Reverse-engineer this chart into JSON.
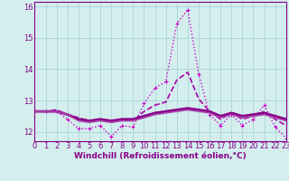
{
  "x": [
    0,
    1,
    2,
    3,
    4,
    5,
    6,
    7,
    8,
    9,
    10,
    11,
    12,
    13,
    14,
    15,
    16,
    17,
    18,
    19,
    20,
    21,
    22,
    23
  ],
  "lines": [
    {
      "name": "dotted_marker",
      "y": [
        12.65,
        12.65,
        12.65,
        12.4,
        12.1,
        12.1,
        12.2,
        11.85,
        12.2,
        12.15,
        12.9,
        13.4,
        13.6,
        15.45,
        15.9,
        13.85,
        12.55,
        12.2,
        12.55,
        12.2,
        12.4,
        12.85,
        12.15,
        11.8
      ],
      "color": "#cc00cc",
      "lw": 1.0,
      "marker": "+",
      "markersize": 3,
      "linestyle": "dotted"
    },
    {
      "name": "dashed_rising",
      "y": [
        12.65,
        12.65,
        12.7,
        12.55,
        12.45,
        12.35,
        12.4,
        12.3,
        12.4,
        12.35,
        12.65,
        12.85,
        12.95,
        13.65,
        13.9,
        13.05,
        12.65,
        12.4,
        12.6,
        12.4,
        12.5,
        12.65,
        12.4,
        12.2
      ],
      "color": "#aa00aa",
      "lw": 1.2,
      "marker": null,
      "linestyle": "dashed"
    },
    {
      "name": "solid_flat",
      "y": [
        12.65,
        12.65,
        12.65,
        12.55,
        12.4,
        12.35,
        12.4,
        12.35,
        12.4,
        12.4,
        12.5,
        12.6,
        12.65,
        12.7,
        12.75,
        12.7,
        12.65,
        12.5,
        12.6,
        12.5,
        12.55,
        12.6,
        12.5,
        12.4
      ],
      "color": "#880088",
      "lw": 2.0,
      "marker": null,
      "linestyle": "solid"
    },
    {
      "name": "solid_flat2",
      "y": [
        12.65,
        12.65,
        12.65,
        12.55,
        12.35,
        12.3,
        12.35,
        12.3,
        12.35,
        12.35,
        12.45,
        12.55,
        12.6,
        12.65,
        12.7,
        12.65,
        12.6,
        12.45,
        12.55,
        12.45,
        12.5,
        12.55,
        12.45,
        12.35
      ],
      "color": "#aa44aa",
      "lw": 1.2,
      "marker": null,
      "linestyle": "solid"
    }
  ],
  "xlim": [
    0,
    23
  ],
  "ylim": [
    11.7,
    16.15
  ],
  "yticks": [
    12,
    13,
    14,
    15,
    16
  ],
  "xticks": [
    0,
    1,
    2,
    3,
    4,
    5,
    6,
    7,
    8,
    9,
    10,
    11,
    12,
    13,
    14,
    15,
    16,
    17,
    18,
    19,
    20,
    21,
    22,
    23
  ],
  "xlabel": "Windchill (Refroidissement éolien,°C)",
  "xlabel_fontsize": 6.5,
  "tick_fontsize": 6,
  "background_color": "#d4eeee",
  "grid_color": "#aad4d4",
  "spine_color": "#880088",
  "label_color": "#880088"
}
